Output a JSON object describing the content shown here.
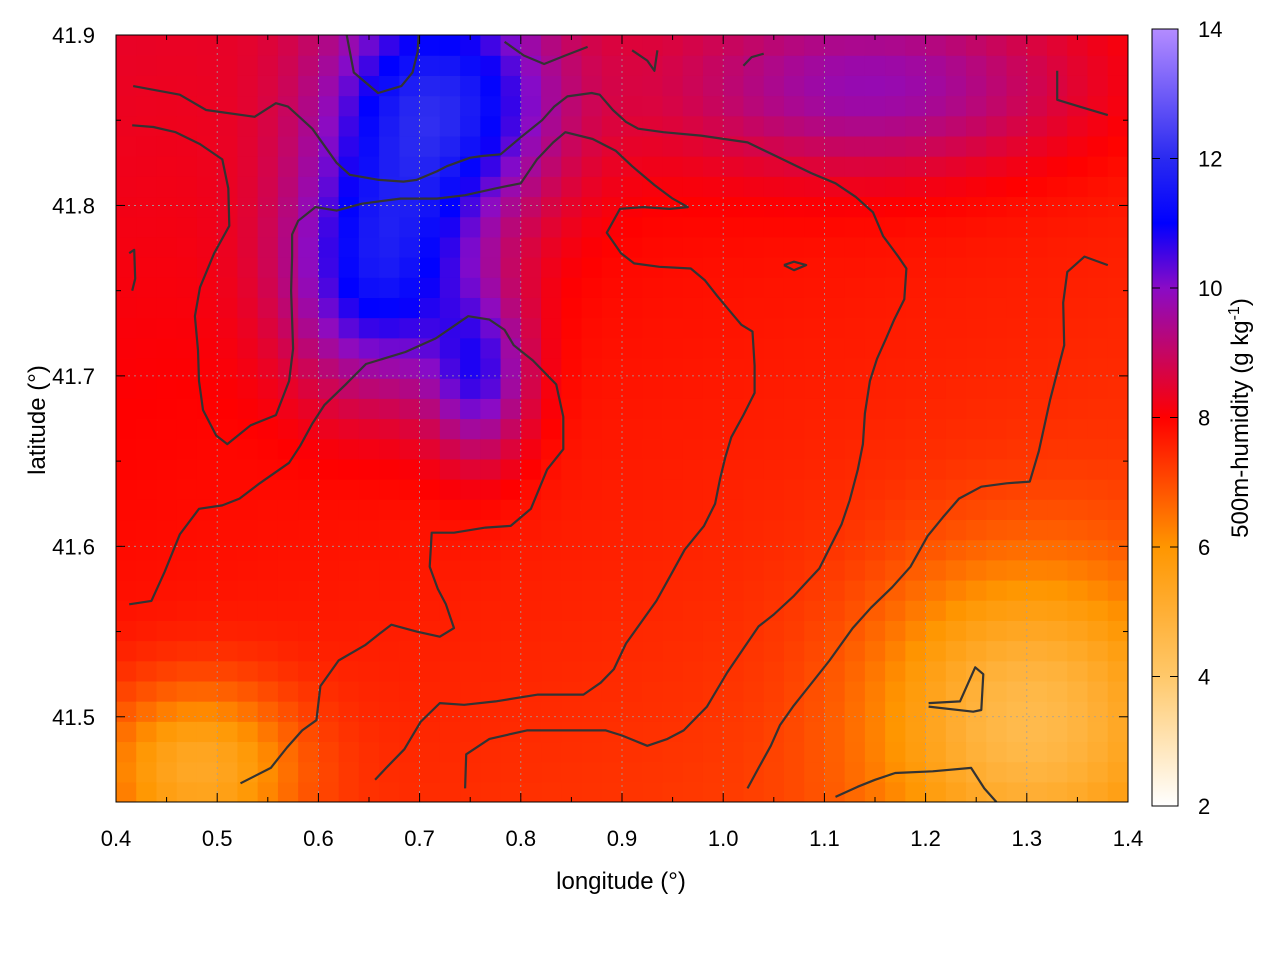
{
  "chart_data": {
    "type": "heatmap",
    "title": "",
    "xlabel": "longitude (°)",
    "ylabel": "latitude (°)",
    "colorbar_label_prefix": "500m-humidity (g kg",
    "colorbar_label_exponent": "-1",
    "colorbar_label_suffix": ")",
    "xlim": [
      0.4,
      1.4
    ],
    "ylim": [
      41.45,
      41.9
    ],
    "xticks": [
      0.4,
      0.5,
      0.6,
      0.7,
      0.8,
      0.9,
      1.0,
      1.1,
      1.2,
      1.3,
      1.4
    ],
    "xtick_labels": [
      "0.4",
      "0.5",
      "0.6",
      "0.7",
      "0.8",
      "0.9",
      "1.0",
      "1.1",
      "1.2",
      "1.3",
      "1.4"
    ],
    "yticks": [
      41.5,
      41.6,
      41.7,
      41.8,
      41.9
    ],
    "ytick_labels": [
      "41.5",
      "41.6",
      "41.7",
      "41.8",
      "41.9"
    ],
    "clim": [
      2,
      14
    ],
    "cticks": [
      2,
      4,
      6,
      8,
      10,
      12,
      14
    ],
    "ctick_labels": [
      "2",
      "4",
      "6",
      "8",
      "10",
      "12",
      "14"
    ],
    "colormap": [
      {
        "v": 2,
        "color": "#ffffff"
      },
      {
        "v": 4,
        "color": "#ffc86a"
      },
      {
        "v": 6,
        "color": "#ff9600"
      },
      {
        "v": 8,
        "color": "#ff0000"
      },
      {
        "v": 10,
        "color": "#8a0bc6"
      },
      {
        "v": 11,
        "color": "#0000ff"
      },
      {
        "v": 12,
        "color": "#2a2af0"
      },
      {
        "v": 14,
        "color": "#b48cff"
      }
    ],
    "grid": true,
    "contour_color": "#333333",
    "field_features": [
      {
        "kind": "moist",
        "lon": 0.72,
        "lat": 41.86,
        "value": 11.2,
        "spread_lon": 0.11,
        "spread_lat": 0.07
      },
      {
        "kind": "moist",
        "lon": 0.66,
        "lat": 41.76,
        "value": 10.8,
        "spread_lon": 0.09,
        "spread_lat": 0.07
      },
      {
        "kind": "moist",
        "lon": 0.76,
        "lat": 41.7,
        "value": 10.0,
        "spread_lon": 0.05,
        "spread_lat": 0.05
      },
      {
        "kind": "moist",
        "lon": 1.15,
        "lat": 41.87,
        "value": 9.5,
        "spread_lon": 0.2,
        "spread_lat": 0.05
      },
      {
        "kind": "dry",
        "lon": 1.3,
        "lat": 41.5,
        "value": 5.0,
        "spread_lon": 0.15,
        "spread_lat": 0.09
      },
      {
        "kind": "dry",
        "lon": 0.48,
        "lat": 41.47,
        "value": 5.3,
        "spread_lon": 0.1,
        "spread_lat": 0.05
      }
    ],
    "contours": [
      [
        [
          0.417,
          41.87
        ],
        [
          0.463,
          41.865
        ],
        [
          0.489,
          41.856
        ],
        [
          0.537,
          41.852
        ],
        [
          0.558,
          41.86
        ],
        [
          0.57,
          41.858
        ],
        [
          0.594,
          41.845
        ],
        [
          0.618,
          41.825
        ],
        [
          0.631,
          41.818
        ],
        [
          0.66,
          41.815
        ],
        [
          0.684,
          41.814
        ],
        [
          0.697,
          41.815
        ],
        [
          0.717,
          41.82
        ],
        [
          0.727,
          41.823
        ],
        [
          0.75,
          41.828
        ],
        [
          0.762,
          41.829
        ],
        [
          0.78,
          41.83
        ],
        [
          0.8,
          41.84
        ],
        [
          0.821,
          41.85
        ],
        [
          0.833,
          41.858
        ],
        [
          0.846,
          41.864
        ],
        [
          0.87,
          41.866
        ],
        [
          0.878,
          41.865
        ],
        [
          0.891,
          41.856
        ],
        [
          0.904,
          41.849
        ],
        [
          0.916,
          41.845
        ],
        [
          0.941,
          41.843
        ],
        [
          0.978,
          41.841
        ],
        [
          1.024,
          41.837
        ],
        [
          1.052,
          41.829
        ],
        [
          1.087,
          41.819
        ],
        [
          1.111,
          41.813
        ],
        [
          1.131,
          41.805
        ],
        [
          1.148,
          41.796
        ],
        [
          1.158,
          41.782
        ],
        [
          1.173,
          41.77
        ],
        [
          1.181,
          41.763
        ],
        [
          1.179,
          41.745
        ],
        [
          1.169,
          41.733
        ],
        [
          1.161,
          41.722
        ],
        [
          1.152,
          41.71
        ],
        [
          1.145,
          41.697
        ],
        [
          1.14,
          41.678
        ],
        [
          1.138,
          41.66
        ],
        [
          1.133,
          41.645
        ],
        [
          1.125,
          41.627
        ],
        [
          1.117,
          41.613
        ],
        [
          1.106,
          41.6
        ],
        [
          1.095,
          41.587
        ],
        [
          1.084,
          41.58
        ],
        [
          1.07,
          41.571
        ],
        [
          1.05,
          41.56
        ],
        [
          1.035,
          41.553
        ],
        [
          1.02,
          41.54
        ],
        [
          1.004,
          41.526
        ],
        [
          0.984,
          41.506
        ],
        [
          0.961,
          41.492
        ],
        [
          0.945,
          41.487
        ],
        [
          0.925,
          41.483
        ],
        [
          0.9,
          41.489
        ],
        [
          0.884,
          41.492
        ],
        [
          0.852,
          41.492
        ],
        [
          0.827,
          41.492
        ],
        [
          0.806,
          41.492
        ],
        [
          0.769,
          41.487
        ],
        [
          0.746,
          41.478
        ],
        [
          0.745,
          41.458
        ]
      ],
      [
        [
          0.416,
          41.847
        ],
        [
          0.437,
          41.846
        ],
        [
          0.459,
          41.843
        ],
        [
          0.483,
          41.836
        ],
        [
          0.505,
          41.827
        ],
        [
          0.511,
          41.81
        ],
        [
          0.512,
          41.788
        ],
        [
          0.497,
          41.772
        ],
        [
          0.483,
          41.752
        ],
        [
          0.478,
          41.735
        ],
        [
          0.481,
          41.715
        ],
        [
          0.482,
          41.697
        ],
        [
          0.486,
          41.68
        ],
        [
          0.499,
          41.665
        ],
        [
          0.51,
          41.66
        ],
        [
          0.533,
          41.671
        ],
        [
          0.558,
          41.677
        ],
        [
          0.571,
          41.697
        ],
        [
          0.575,
          41.716
        ],
        [
          0.573,
          41.75
        ],
        [
          0.574,
          41.77
        ],
        [
          0.574,
          41.783
        ],
        [
          0.58,
          41.791
        ],
        [
          0.597,
          41.799
        ],
        [
          0.618,
          41.797
        ],
        [
          0.643,
          41.801
        ],
        [
          0.681,
          41.804
        ],
        [
          0.717,
          41.804
        ],
        [
          0.745,
          41.806
        ],
        [
          0.775,
          41.81
        ],
        [
          0.8,
          41.813
        ],
        [
          0.816,
          41.827
        ],
        [
          0.832,
          41.837
        ],
        [
          0.844,
          41.843
        ],
        [
          0.871,
          41.839
        ],
        [
          0.894,
          41.832
        ],
        [
          0.91,
          41.823
        ],
        [
          0.932,
          41.812
        ],
        [
          0.95,
          41.804
        ],
        [
          0.965,
          41.799
        ],
        [
          0.947,
          41.798
        ],
        [
          0.921,
          41.799
        ],
        [
          0.898,
          41.798
        ],
        [
          0.885,
          41.784
        ],
        [
          0.899,
          41.772
        ],
        [
          0.912,
          41.766
        ],
        [
          0.937,
          41.764
        ],
        [
          0.968,
          41.763
        ],
        [
          0.982,
          41.756
        ],
        [
          0.994,
          41.747
        ],
        [
          1.008,
          41.737
        ],
        [
          1.018,
          41.73
        ],
        [
          1.029,
          41.726
        ],
        [
          1.031,
          41.706
        ],
        [
          1.031,
          41.69
        ],
        [
          1.02,
          41.677
        ],
        [
          1.008,
          41.664
        ],
        [
          1.002,
          41.652
        ],
        [
          0.997,
          41.64
        ],
        [
          0.992,
          41.625
        ],
        [
          0.981,
          41.612
        ],
        [
          0.962,
          41.598
        ],
        [
          0.948,
          41.583
        ],
        [
          0.934,
          41.568
        ],
        [
          0.922,
          41.558
        ],
        [
          0.904,
          41.543
        ],
        [
          0.892,
          41.528
        ],
        [
          0.879,
          41.52
        ],
        [
          0.862,
          41.513
        ],
        [
          0.841,
          41.513
        ],
        [
          0.817,
          41.513
        ],
        [
          0.775,
          41.509
        ],
        [
          0.744,
          41.507
        ],
        [
          0.72,
          41.508
        ],
        [
          0.701,
          41.497
        ],
        [
          0.685,
          41.481
        ],
        [
          0.667,
          41.47
        ],
        [
          0.656,
          41.463
        ]
      ],
      [
        [
          0.413,
          41.566
        ],
        [
          0.435,
          41.568
        ],
        [
          0.448,
          41.585
        ],
        [
          0.463,
          41.607
        ],
        [
          0.482,
          41.622
        ],
        [
          0.505,
          41.624
        ],
        [
          0.522,
          41.628
        ],
        [
          0.542,
          41.637
        ],
        [
          0.571,
          41.649
        ],
        [
          0.582,
          41.659
        ],
        [
          0.594,
          41.672
        ],
        [
          0.606,
          41.683
        ],
        [
          0.627,
          41.695
        ],
        [
          0.647,
          41.707
        ],
        [
          0.686,
          41.714
        ],
        [
          0.716,
          41.722
        ],
        [
          0.748,
          41.735
        ],
        [
          0.769,
          41.733
        ],
        [
          0.784,
          41.727
        ],
        [
          0.793,
          41.718
        ],
        [
          0.812,
          41.709
        ],
        [
          0.835,
          41.695
        ],
        [
          0.842,
          41.676
        ],
        [
          0.842,
          41.657
        ],
        [
          0.826,
          41.645
        ],
        [
          0.81,
          41.622
        ],
        [
          0.79,
          41.612
        ],
        [
          0.765,
          41.611
        ],
        [
          0.734,
          41.608
        ],
        [
          0.712,
          41.608
        ],
        [
          0.71,
          41.588
        ],
        [
          0.718,
          41.575
        ],
        [
          0.726,
          41.566
        ],
        [
          0.734,
          41.552
        ],
        [
          0.72,
          41.547
        ],
        [
          0.697,
          41.55
        ],
        [
          0.672,
          41.554
        ],
        [
          0.661,
          41.549
        ],
        [
          0.646,
          41.542
        ],
        [
          0.62,
          41.533
        ],
        [
          0.602,
          41.518
        ],
        [
          0.598,
          41.498
        ],
        [
          0.584,
          41.492
        ],
        [
          0.569,
          41.482
        ],
        [
          0.553,
          41.47
        ],
        [
          0.523,
          41.461
        ]
      ],
      [
        [
          0.628,
          41.9
        ],
        [
          0.635,
          41.878
        ],
        [
          0.659,
          41.866
        ],
        [
          0.682,
          41.87
        ],
        [
          0.693,
          41.878
        ],
        [
          0.698,
          41.89
        ],
        [
          0.699,
          41.9
        ]
      ],
      [
        [
          1.024,
          41.458
        ],
        [
          1.035,
          41.47
        ],
        [
          1.047,
          41.483
        ],
        [
          1.056,
          41.495
        ],
        [
          1.069,
          41.506
        ],
        [
          1.089,
          41.521
        ],
        [
          1.105,
          41.533
        ],
        [
          1.128,
          41.552
        ],
        [
          1.146,
          41.564
        ],
        [
          1.167,
          41.576
        ],
        [
          1.185,
          41.588
        ],
        [
          1.202,
          41.606
        ],
        [
          1.217,
          41.617
        ],
        [
          1.233,
          41.628
        ],
        [
          1.255,
          41.635
        ],
        [
          1.28,
          41.637
        ],
        [
          1.303,
          41.638
        ],
        [
          1.312,
          41.656
        ],
        [
          1.323,
          41.686
        ],
        [
          1.337,
          41.718
        ],
        [
          1.336,
          41.743
        ],
        [
          1.34,
          41.761
        ],
        [
          1.357,
          41.77
        ],
        [
          1.38,
          41.765
        ]
      ],
      [
        [
          1.111,
          41.453
        ],
        [
          1.133,
          41.459
        ],
        [
          1.15,
          41.463
        ],
        [
          1.17,
          41.467
        ],
        [
          1.207,
          41.468
        ],
        [
          1.245,
          41.47
        ],
        [
          1.258,
          41.458
        ],
        [
          1.27,
          41.45
        ]
      ],
      [
        [
          1.203,
          41.506
        ],
        [
          1.247,
          41.503
        ],
        [
          1.255,
          41.504
        ],
        [
          1.257,
          41.525
        ],
        [
          1.249,
          41.529
        ],
        [
          1.234,
          41.509
        ],
        [
          1.203,
          41.508
        ]
      ],
      [
        [
          1.06,
          41.765
        ],
        [
          1.07,
          41.767
        ],
        [
          1.082,
          41.765
        ],
        [
          1.07,
          41.762
        ],
        [
          1.06,
          41.765
        ]
      ],
      [
        [
          0.784,
          41.896
        ],
        [
          0.803,
          41.888
        ],
        [
          0.823,
          41.883
        ],
        [
          0.844,
          41.888
        ],
        [
          0.866,
          41.893
        ]
      ],
      [
        [
          0.91,
          41.891
        ],
        [
          0.925,
          41.885
        ],
        [
          0.932,
          41.879
        ],
        [
          0.935,
          41.891
        ]
      ],
      [
        [
          1.02,
          41.882
        ],
        [
          1.028,
          41.887
        ],
        [
          1.04,
          41.889
        ]
      ],
      [
        [
          1.33,
          41.879
        ],
        [
          1.33,
          41.862
        ],
        [
          1.352,
          41.858
        ],
        [
          1.38,
          41.853
        ]
      ],
      [
        [
          0.416,
          41.75
        ],
        [
          0.419,
          41.757
        ],
        [
          0.418,
          41.774
        ],
        [
          0.413,
          41.772
        ]
      ]
    ]
  }
}
